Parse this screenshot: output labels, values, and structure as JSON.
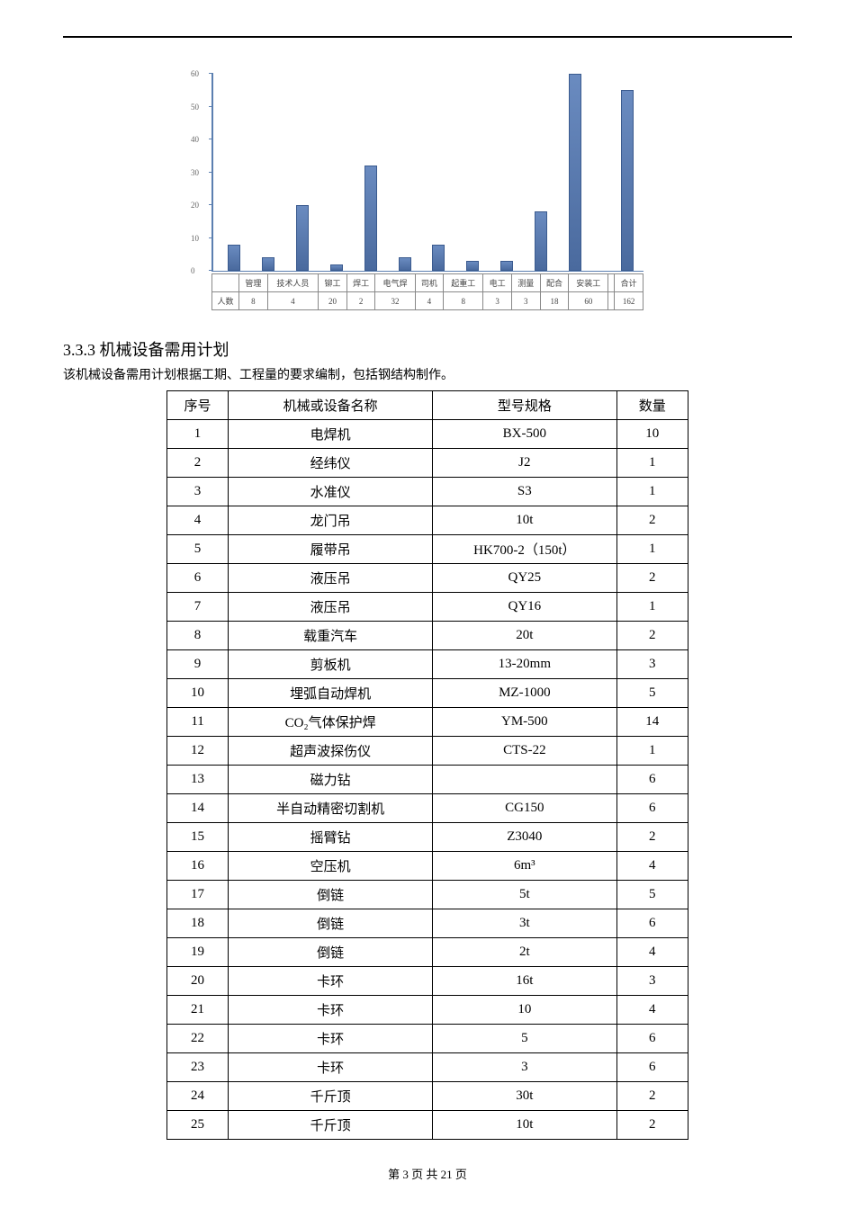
{
  "chart": {
    "type": "bar",
    "ylim": [
      0,
      60
    ],
    "ytick_step": 10,
    "yticks": [
      0,
      10,
      20,
      30,
      40,
      50,
      60
    ],
    "bar_color": "#5b7fb0",
    "categories": [
      "管理",
      "技术人员",
      "铆工",
      "焊工",
      "电气焊",
      "司机",
      "起重工",
      "电工",
      "测量",
      "配合",
      "安装工",
      "合计"
    ],
    "row_label": "人数",
    "values": [
      8,
      4,
      20,
      2,
      32,
      4,
      8,
      3,
      3,
      18,
      60,
      162
    ],
    "display_heights": [
      8,
      4,
      20,
      2,
      32,
      4,
      8,
      3,
      3,
      18,
      60,
      55
    ]
  },
  "section": {
    "number": "3.3.3",
    "title": "机械设备需用计划",
    "description": "该机械设备需用计划根据工期、工程量的要求编制，包括钢结构制作。"
  },
  "table": {
    "headers": {
      "seq": "序号",
      "name": "机械或设备名称",
      "spec": "型号规格",
      "qty": "数量"
    },
    "rows": [
      {
        "seq": "1",
        "name": "电焊机",
        "spec": "BX-500",
        "qty": "10"
      },
      {
        "seq": "2",
        "name": "经纬仪",
        "spec": "J2",
        "qty": "1"
      },
      {
        "seq": "3",
        "name": "水准仪",
        "spec": "S3",
        "qty": "1"
      },
      {
        "seq": "4",
        "name": "龙门吊",
        "spec": "10t",
        "qty": "2"
      },
      {
        "seq": "5",
        "name": "履带吊",
        "spec": "HK700-2（150t）",
        "qty": "1"
      },
      {
        "seq": "6",
        "name": "液压吊",
        "spec": "QY25",
        "qty": "2"
      },
      {
        "seq": "7",
        "name": "液压吊",
        "spec": "QY16",
        "qty": "1"
      },
      {
        "seq": "8",
        "name": "载重汽车",
        "spec": "20t",
        "qty": "2"
      },
      {
        "seq": "9",
        "name": "剪板机",
        "spec": "13-20mm",
        "qty": "3"
      },
      {
        "seq": "10",
        "name": "埋弧自动焊机",
        "spec": "MZ-1000",
        "qty": "5"
      },
      {
        "seq": "11",
        "name": "CO₂气体保护焊",
        "spec": "YM-500",
        "qty": "14"
      },
      {
        "seq": "12",
        "name": "超声波探伤仪",
        "spec": "CTS-22",
        "qty": "1"
      },
      {
        "seq": "13",
        "name": "磁力钻",
        "spec": "",
        "qty": "6"
      },
      {
        "seq": "14",
        "name": "半自动精密切割机",
        "spec": "CG150",
        "qty": "6"
      },
      {
        "seq": "15",
        "name": "摇臂钻",
        "spec": "Z3040",
        "qty": "2"
      },
      {
        "seq": "16",
        "name": "空压机",
        "spec": "6m³",
        "qty": "4"
      },
      {
        "seq": "17",
        "name": "倒链",
        "spec": "5t",
        "qty": "5"
      },
      {
        "seq": "18",
        "name": "倒链",
        "spec": "3t",
        "qty": "6"
      },
      {
        "seq": "19",
        "name": "倒链",
        "spec": "2t",
        "qty": "4"
      },
      {
        "seq": "20",
        "name": "卡环",
        "spec": "16t",
        "qty": "3"
      },
      {
        "seq": "21",
        "name": "卡环",
        "spec": "10",
        "qty": "4"
      },
      {
        "seq": "22",
        "name": "卡环",
        "spec": "5",
        "qty": "6"
      },
      {
        "seq": "23",
        "name": "卡环",
        "spec": "3",
        "qty": "6"
      },
      {
        "seq": "24",
        "name": "千斤顶",
        "spec": "30t",
        "qty": "2"
      },
      {
        "seq": "25",
        "name": "千斤顶",
        "spec": "10t",
        "qty": "2"
      }
    ]
  },
  "footer": {
    "text": "第 3 页 共 21 页"
  }
}
